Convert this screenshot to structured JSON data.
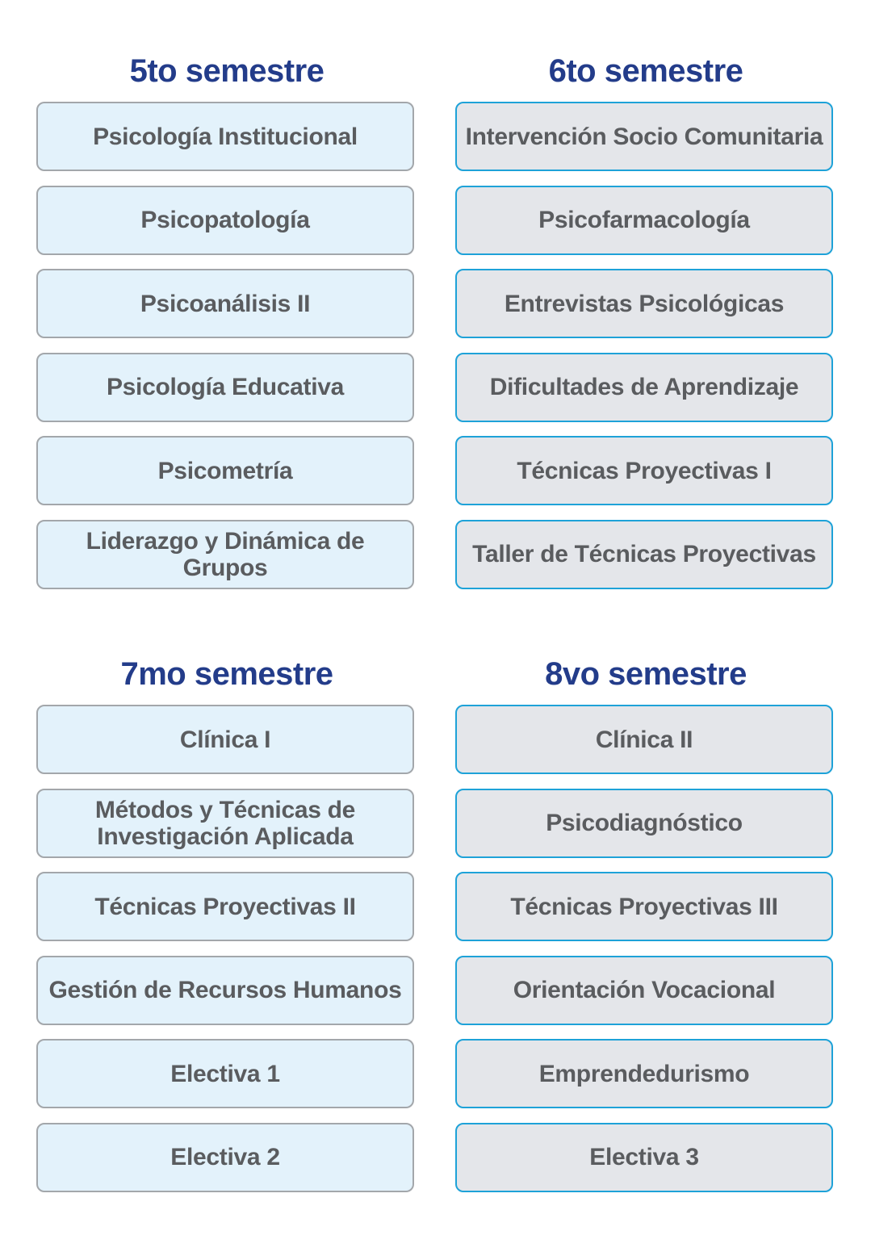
{
  "colors": {
    "title": "#233c8a",
    "course_text": "#5a5c5f",
    "left_fill": "#e3f2fb",
    "left_border": "#a3a7ab",
    "right_fill": "#e4e6ea",
    "right_border": "#1ea2d8"
  },
  "semesters": [
    {
      "title": "5to semestre",
      "courses": [
        "Psicología Institucional",
        "Psicopatología",
        "Psicoanálisis II",
        "Psicología Educativa",
        "Psicometría",
        "Liderazgo y Dinámica de Grupos"
      ]
    },
    {
      "title": "6to semestre",
      "courses": [
        "Intervención Socio Comunitaria",
        "Psicofarmacología",
        "Entrevistas Psicológicas",
        "Dificultades de Aprendizaje",
        "Técnicas Proyectivas I",
        "Taller de Técnicas Proyectivas"
      ]
    },
    {
      "title": "7mo semestre",
      "courses": [
        "Clínica I",
        "Métodos y Técnicas de Investigación Aplicada",
        "Técnicas Proyectivas II",
        "Gestión de Recursos Humanos",
        "Electiva 1",
        "Electiva 2"
      ]
    },
    {
      "title": "8vo semestre",
      "courses": [
        "Clínica II",
        "Psicodiagnóstico",
        "Técnicas Proyectivas III",
        "Orientación Vocacional",
        "Emprendedurismo",
        "Electiva 3"
      ]
    }
  ]
}
